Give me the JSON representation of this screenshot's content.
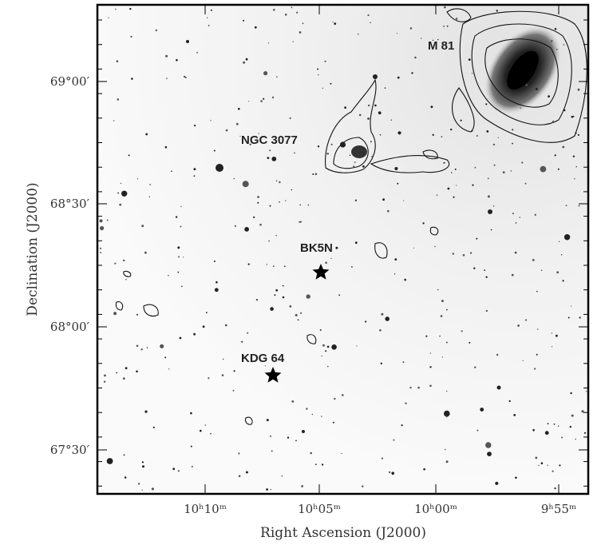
{
  "figure": {
    "annotations": [
      "M 81",
      "NGC 3077",
      "BK5N",
      "KDG 64"
    ],
    "x_axis": {
      "label": "Right Ascension (J2000)",
      "ticks": [
        "10ʰ10ᵐ",
        "10ʰ05ᵐ",
        "10ʰ00ᵐ",
        "9ʰ55ᵐ"
      ]
    },
    "y_axis": {
      "label": "Declination (J2000)",
      "ticks": [
        "69°00′",
        "68°30′",
        "68°00′",
        "67°30′"
      ]
    }
  }
}
